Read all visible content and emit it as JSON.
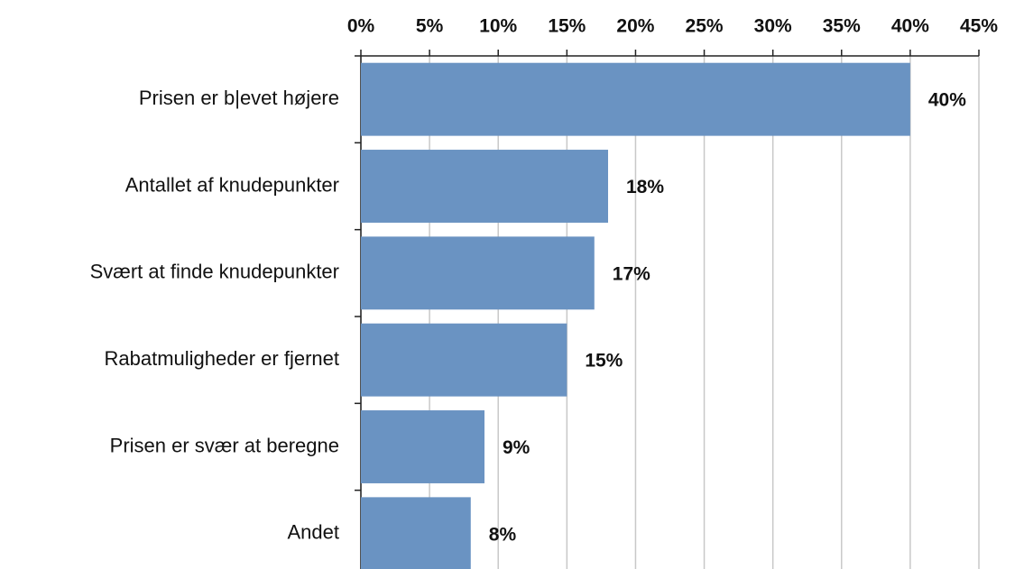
{
  "chart_data": {
    "type": "bar",
    "orientation": "horizontal",
    "categories": [
      "Prisen er b|evet højere",
      "Antallet af knudepunkter",
      "Svært at finde knudepunkter",
      "Rabatmuligheder er fjernet",
      "Prisen er svær at beregne",
      "Andet"
    ],
    "values": [
      40,
      18,
      17,
      15,
      9,
      8
    ],
    "value_labels": [
      "40%",
      "18%",
      "17%",
      "15%",
      "9%",
      "8%"
    ],
    "color": "#6a93c2",
    "xlim": [
      0,
      45
    ],
    "xticks": [
      {
        "value": 0,
        "label": "0%"
      },
      {
        "value": 5,
        "label": "5%"
      },
      {
        "value": 10,
        "label": "10%"
      },
      {
        "value": 15,
        "label": "15%"
      },
      {
        "value": 20,
        "label": "20%"
      },
      {
        "value": 25,
        "label": "25%"
      },
      {
        "value": 30,
        "label": "30%"
      },
      {
        "value": 35,
        "label": "35%"
      },
      {
        "value": 40,
        "label": "40%"
      },
      {
        "value": 45,
        "label": "45%"
      }
    ],
    "grid": true
  }
}
